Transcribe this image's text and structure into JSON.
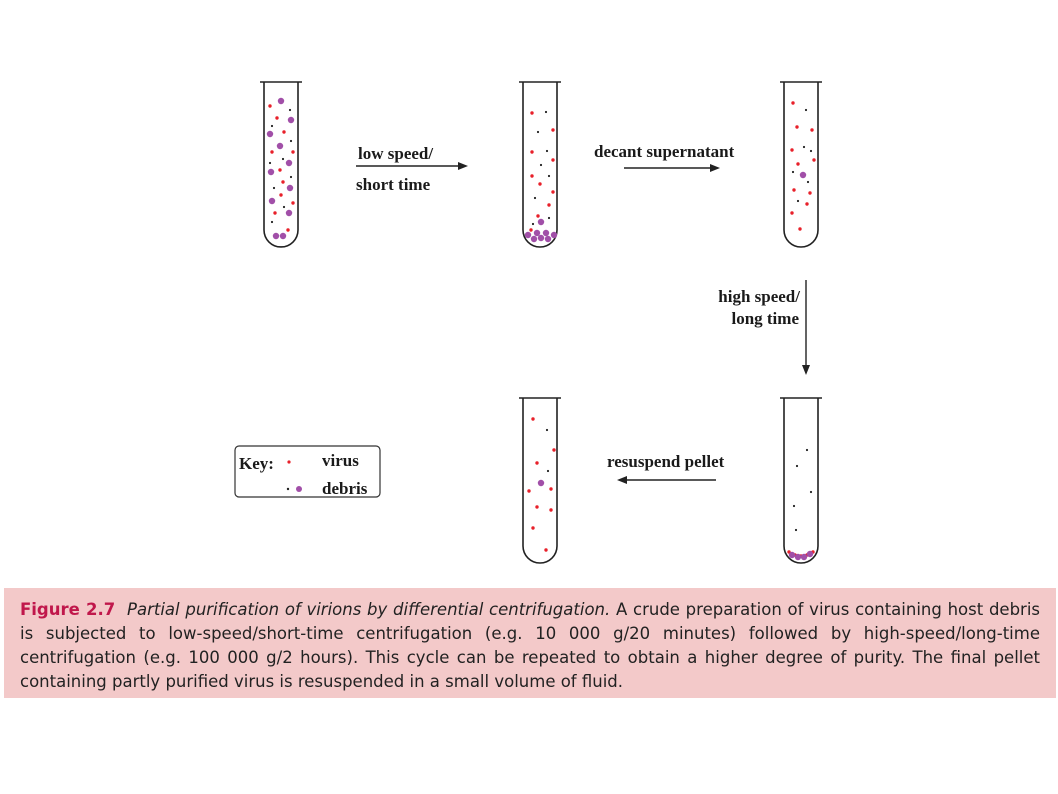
{
  "labels": {
    "step1_line1": "low speed/",
    "step1_line2": "short time",
    "step2": "decant supernatant",
    "step3_line1": "high speed/",
    "step3_line2": "long time",
    "step4": "resuspend pellet"
  },
  "key": {
    "title": "Key:",
    "virus": "virus",
    "debris": "debris"
  },
  "colors": {
    "virus": "#e8202a",
    "debris_large": "#a14fa8",
    "debris_small": "#222222",
    "caption_bg": "#f3c9c9",
    "figure_label": "#c0174b"
  },
  "caption": {
    "figure_label": "Figure 2.7",
    "title": "Partial purification of virions by differential centrifugation.",
    "body": "A crude preparation of virus containing host debris is subjected to low-speed/short-time centrifugation (e.g. 10 000 g/20 minutes) followed by high-speed/long-time centrifugation (e.g. 100 000 g/2 hours). This cycle can be repeated to obtain a higher degree of purity. The final pellet containing partly purified virus is resuspended in a small volume of fluid."
  }
}
